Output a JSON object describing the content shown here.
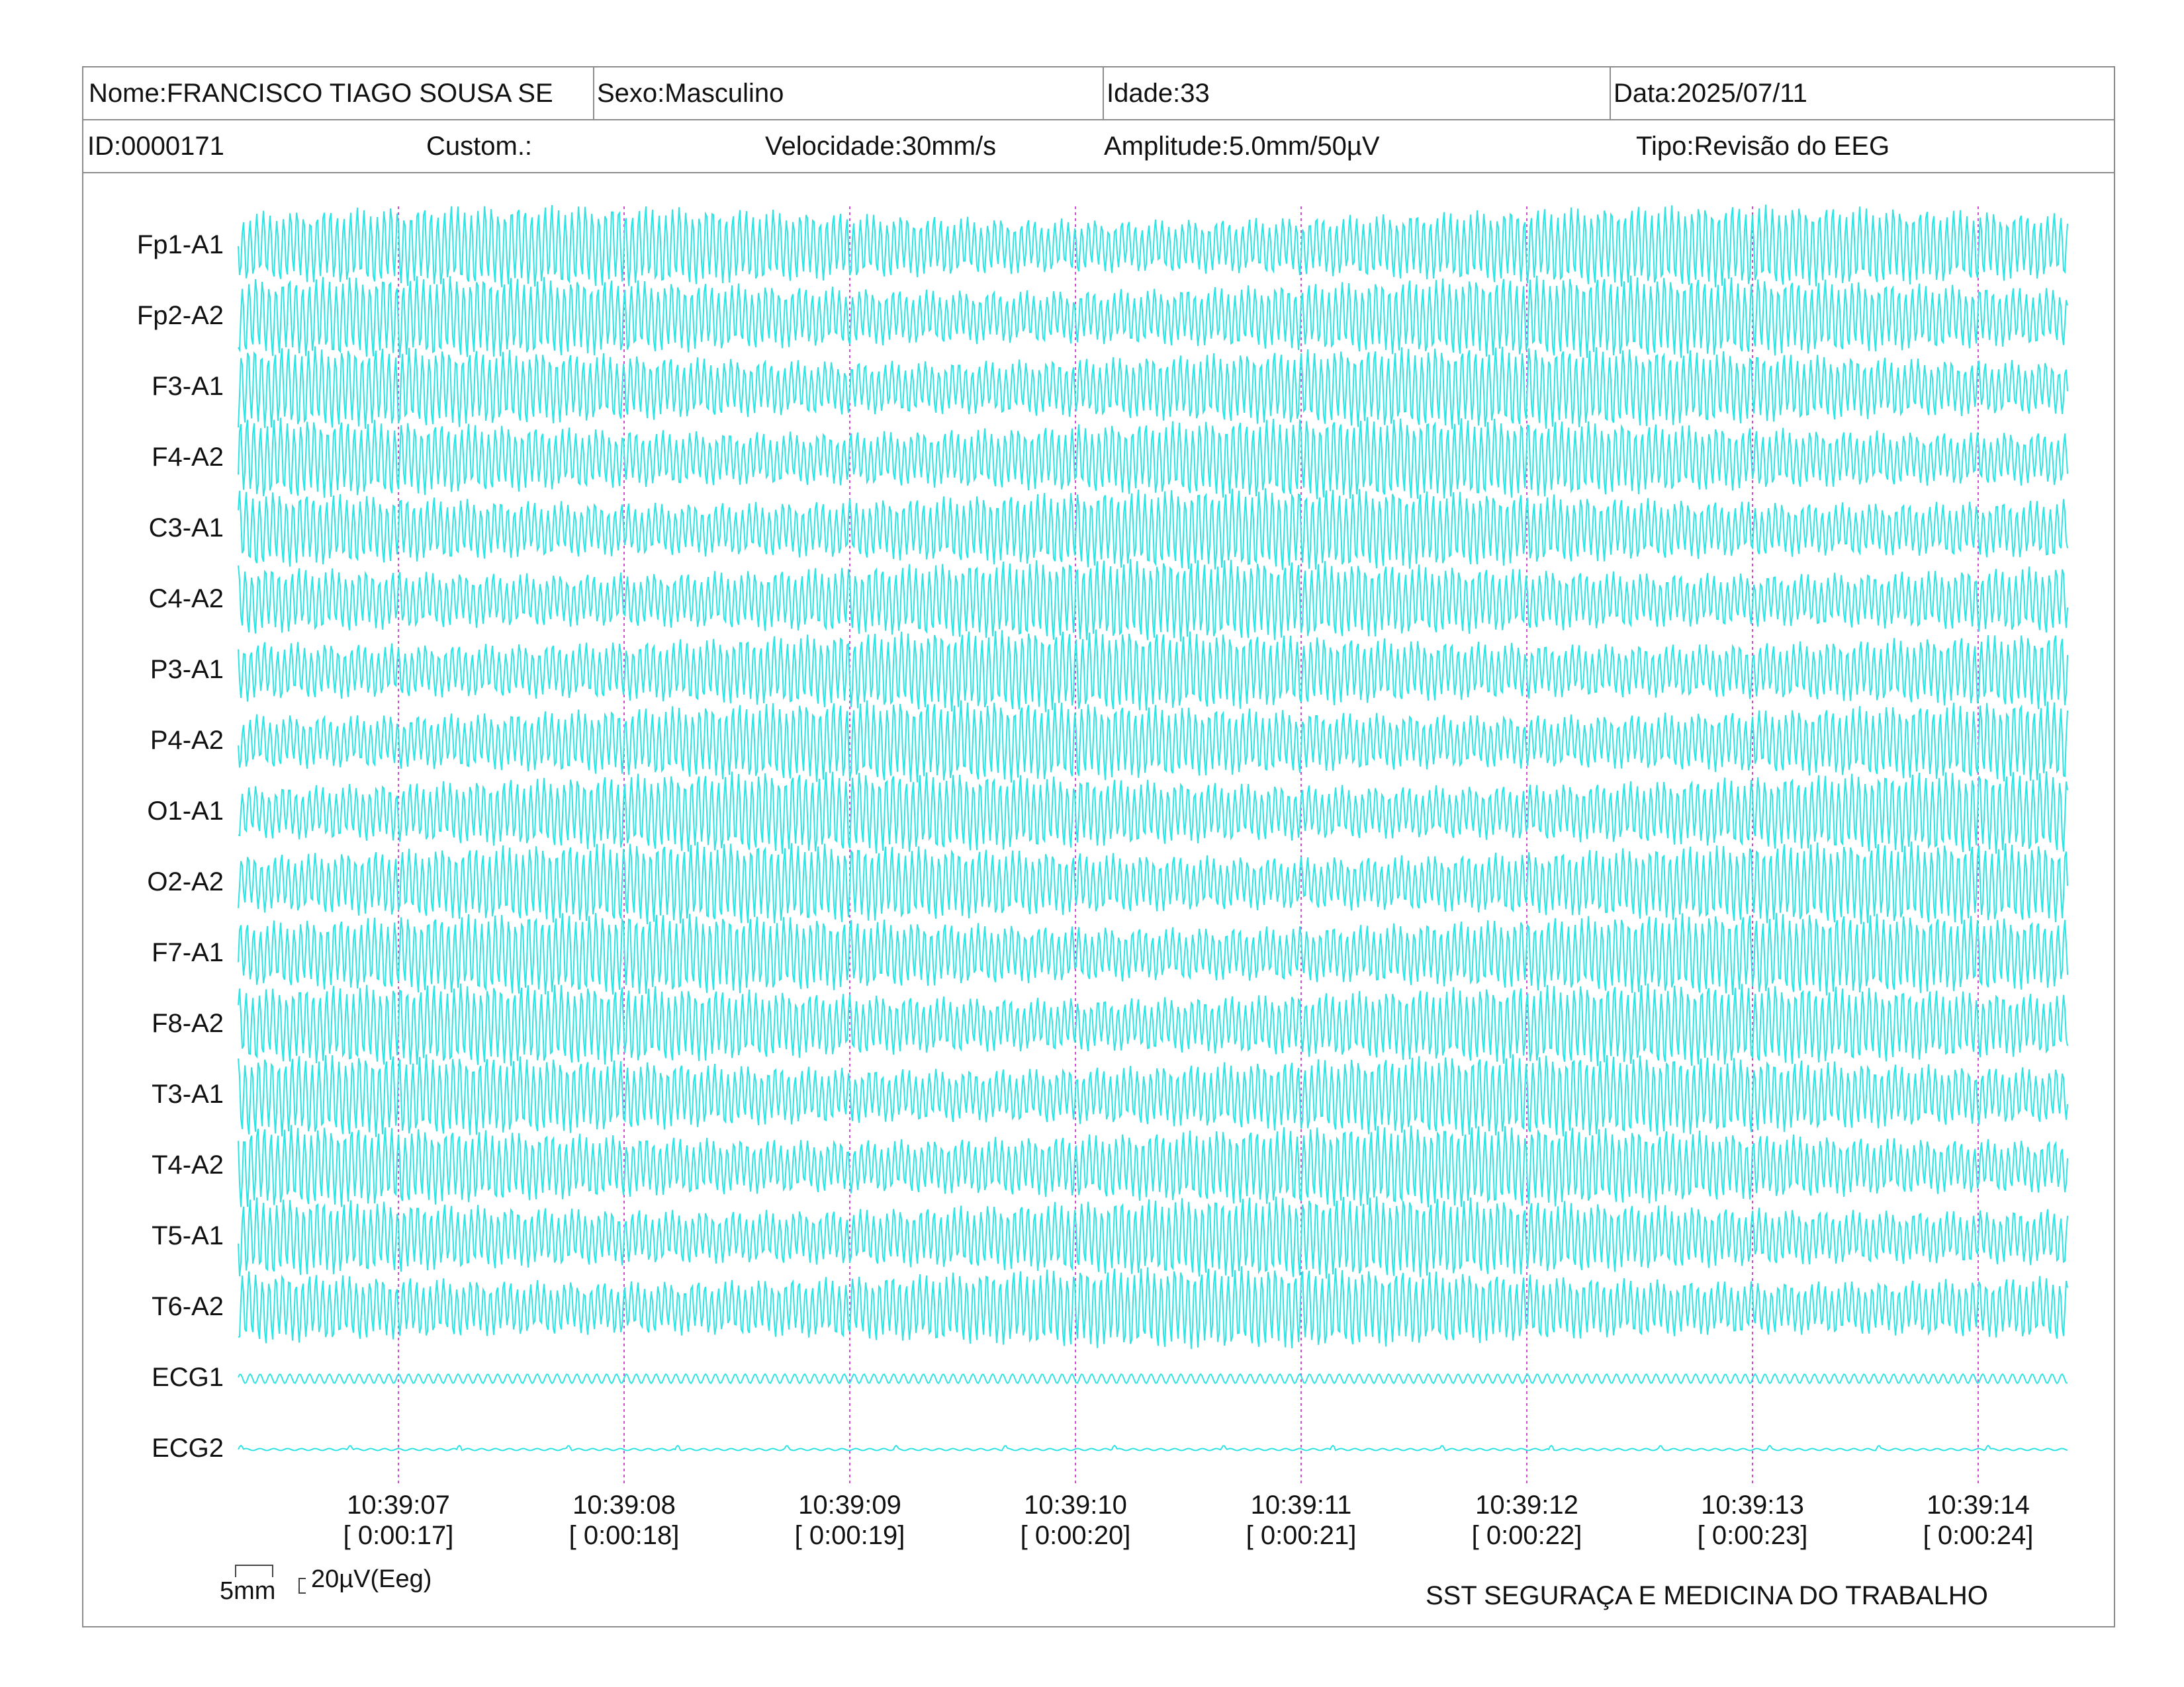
{
  "header": {
    "name": "Nome:FRANCISCO TIAGO SOUSA SE",
    "sex": "Sexo:Masculino",
    "age": "Idade:33",
    "date": "Data:2025/07/11",
    "id": "ID:0000171",
    "custom": "Custom.:",
    "speed": "Velocidade:30mm/s",
    "amplitude": "Amplitude:5.0mm/50µV",
    "type": "Tipo:Revisão do EEG"
  },
  "channels": [
    "Fp1-A1",
    "Fp2-A2",
    "F3-A1",
    "F4-A2",
    "C3-A1",
    "C4-A2",
    "P3-A1",
    "P4-A2",
    "O1-A1",
    "O2-A2",
    "F7-A1",
    "F8-A2",
    "T3-A1",
    "T4-A2",
    "T5-A1",
    "T6-A2",
    "ECG1",
    "ECG2"
  ],
  "time_marks": [
    {
      "clock": "10:39:07",
      "elapsed": "[ 0:00:17]"
    },
    {
      "clock": "10:39:08",
      "elapsed": "[ 0:00:18]"
    },
    {
      "clock": "10:39:09",
      "elapsed": "[ 0:00:19]"
    },
    {
      "clock": "10:39:10",
      "elapsed": "[ 0:00:20]"
    },
    {
      "clock": "10:39:11",
      "elapsed": "[ 0:00:21]"
    },
    {
      "clock": "10:39:12",
      "elapsed": "[ 0:00:22]"
    },
    {
      "clock": "10:39:13",
      "elapsed": "[ 0:00:23]"
    },
    {
      "clock": "10:39:14",
      "elapsed": "[ 0:00:24]"
    }
  ],
  "scale": {
    "time": "5mm",
    "amplitude": "20µV(Eeg)"
  },
  "footer": {
    "organization": "SST SEGURAÇA E MEDICINA DO TRABALHO"
  },
  "colors": {
    "trace": "#2fe3e3",
    "time_marker": "#d24ad2",
    "border": "#8c8c8c"
  }
}
